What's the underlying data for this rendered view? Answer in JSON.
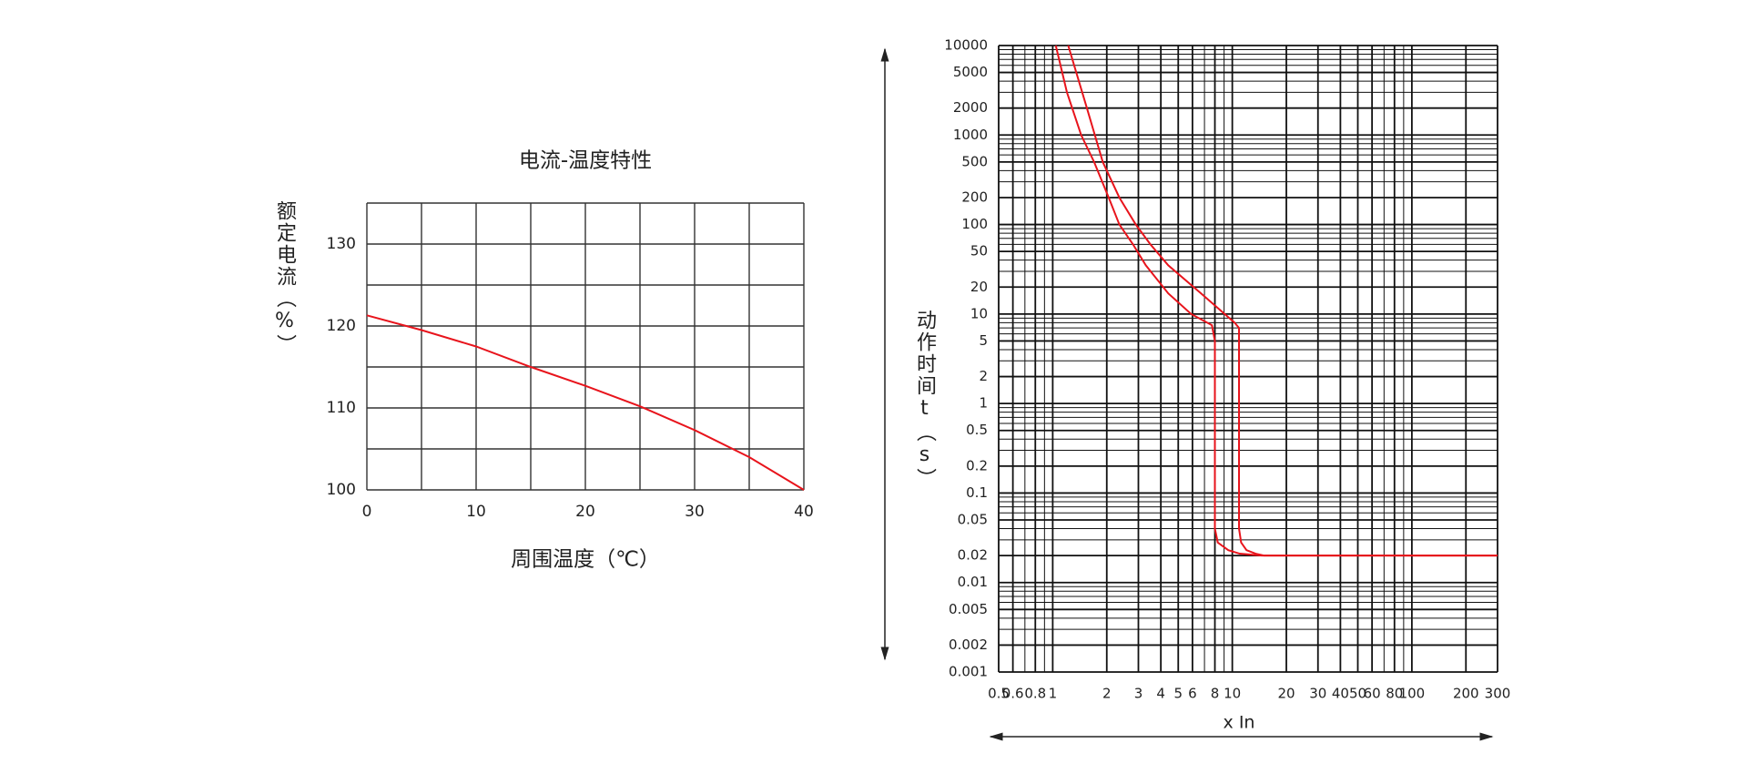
{
  "chart_data": [
    {
      "type": "line",
      "title": "电流-温度特性",
      "ylabel": "额定电流（%）",
      "xlabel": "周围温度（℃）",
      "x": [
        0,
        5,
        10,
        15,
        20,
        25,
        30,
        35,
        40
      ],
      "values": [
        121.3,
        119.5,
        117.5,
        115,
        112.7,
        110.2,
        107.3,
        104,
        100
      ],
      "color": "#e8141c",
      "xlim": [
        0,
        40
      ],
      "xticks": [
        0,
        10,
        20,
        30,
        40
      ],
      "minor_xticks": [
        5,
        15,
        25,
        35
      ],
      "ylim": [
        100,
        135
      ],
      "yticks": [
        100,
        110,
        120,
        130
      ],
      "minor_yticks": [
        105,
        115,
        125,
        135
      ],
      "grid": true
    },
    {
      "type": "line",
      "ylabel": "动作时间t（s）",
      "xlabel": "x In",
      "xscale": "log",
      "yscale": "log",
      "series": [
        {
          "color": "#e8141c",
          "x": [
            1.04,
            1.2,
            1.44,
            1.7,
            2.05,
            2.35,
            2.8,
            3.3,
            4.4,
            5.9,
            7.7,
            8,
            8,
            8.3,
            9.5,
            11,
            14.6,
            300
          ],
          "values": [
            10000,
            3000,
            1000,
            500,
            200,
            100,
            60,
            35,
            17,
            10,
            7.5,
            5,
            0.04,
            0.028,
            0.023,
            0.021,
            0.02,
            0.02
          ]
        },
        {
          "color": "#e8141c",
          "x": [
            1.22,
            1.55,
            1.9,
            2.35,
            2.9,
            3.5,
            4.4,
            6.7,
            10.3,
            10.9,
            10.9,
            11.2,
            12,
            13.5,
            15,
            300
          ],
          "values": [
            10000,
            2000,
            500,
            200,
            100,
            60,
            35,
            17,
            8,
            7,
            0.04,
            0.028,
            0.023,
            0.021,
            0.02,
            0.02
          ]
        }
      ],
      "xlim": [
        0.5,
        300
      ],
      "xticks": [
        0.5,
        0.6,
        0.8,
        1,
        2,
        3,
        4,
        5,
        6,
        8,
        10,
        20,
        30,
        40,
        50,
        60,
        80,
        100,
        200,
        300
      ],
      "minor_xticks": [
        0.7,
        0.9,
        7,
        9,
        70,
        90
      ],
      "ylim": [
        0.001,
        10000
      ],
      "yticks": [
        0.001,
        0.002,
        0.005,
        0.01,
        0.02,
        0.05,
        0.1,
        0.2,
        0.5,
        1,
        2,
        5,
        10,
        20,
        50,
        100,
        200,
        500,
        1000,
        2000,
        5000,
        10000
      ],
      "minor_yticks": [
        0.003,
        0.004,
        0.006,
        0.007,
        0.008,
        0.009,
        0.03,
        0.04,
        0.06,
        0.07,
        0.08,
        0.09,
        0.3,
        0.4,
        0.6,
        0.7,
        0.8,
        0.9,
        3,
        4,
        6,
        7,
        8,
        9,
        30,
        40,
        60,
        70,
        80,
        90,
        300,
        400,
        600,
        700,
        800,
        900,
        3000,
        4000,
        6000,
        7000,
        8000,
        9000
      ],
      "grid": true
    }
  ]
}
